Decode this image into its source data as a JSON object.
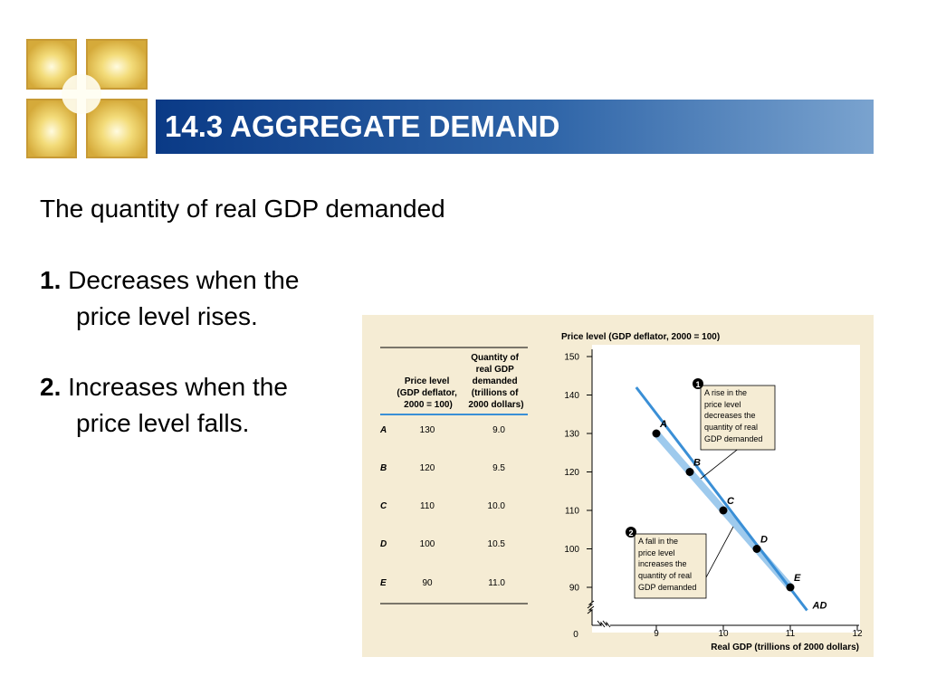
{
  "slide": {
    "title": "14.3 AGGREGATE DEMAND",
    "subtitle": "The quantity of real GDP demanded",
    "points": [
      {
        "num": "1.",
        "line1": "Decreases when the",
        "line2": "price level rises."
      },
      {
        "num": "2.",
        "line1": "Increases when the",
        "line2": "price level falls."
      }
    ]
  },
  "table": {
    "headers": {
      "col1": [
        "Price level",
        "(GDP deflator,",
        "2000 = 100)"
      ],
      "col2": [
        "Quantity of",
        "real GDP",
        "demanded",
        "(trillions of",
        "2000 dollars)"
      ]
    },
    "rows": [
      {
        "label": "A",
        "price": "130",
        "qty": "9.0"
      },
      {
        "label": "B",
        "price": "120",
        "qty": "9.5"
      },
      {
        "label": "C",
        "price": "110",
        "qty": "10.0"
      },
      {
        "label": "D",
        "price": "100",
        "qty": "10.5"
      },
      {
        "label": "E",
        "price": "90",
        "qty": "11.0"
      }
    ]
  },
  "chart_data": {
    "type": "line",
    "ylabel": "Price level (GDP deflator, 2000 = 100)",
    "xlabel": "Real GDP (trillions of 2000 dollars)",
    "origin_label": "0",
    "x_ticks": [
      "9",
      "10",
      "11",
      "12"
    ],
    "y_ticks": [
      "90",
      "100",
      "110",
      "120",
      "130",
      "140",
      "150"
    ],
    "xlim": [
      8,
      12
    ],
    "ylim": [
      85,
      150
    ],
    "series": [
      {
        "name": "AD",
        "points": [
          {
            "label": "A",
            "x": 9.0,
            "y": 130
          },
          {
            "label": "B",
            "x": 9.5,
            "y": 120
          },
          {
            "label": "C",
            "x": 10.0,
            "y": 110
          },
          {
            "label": "D",
            "x": 10.5,
            "y": 100
          },
          {
            "label": "E",
            "x": 11.0,
            "y": 90
          }
        ],
        "line_start": {
          "x": 8.7,
          "y": 142
        },
        "line_end": {
          "x": 11.25,
          "y": 84
        }
      }
    ],
    "annotations": [
      {
        "marker": "1",
        "lines": [
          "A rise in the",
          "price level",
          "decreases the",
          "quantity of real",
          "GDP demanded"
        ]
      },
      {
        "marker": "2",
        "lines": [
          "A fall in the",
          "price level",
          "increases the",
          "quantity of real",
          "GDP demanded"
        ]
      }
    ],
    "colors": {
      "line": "#3a8fd6",
      "highlight": "#8ec1ea",
      "background": "#f5ecd4",
      "plot_bg": "#ffffff"
    }
  }
}
